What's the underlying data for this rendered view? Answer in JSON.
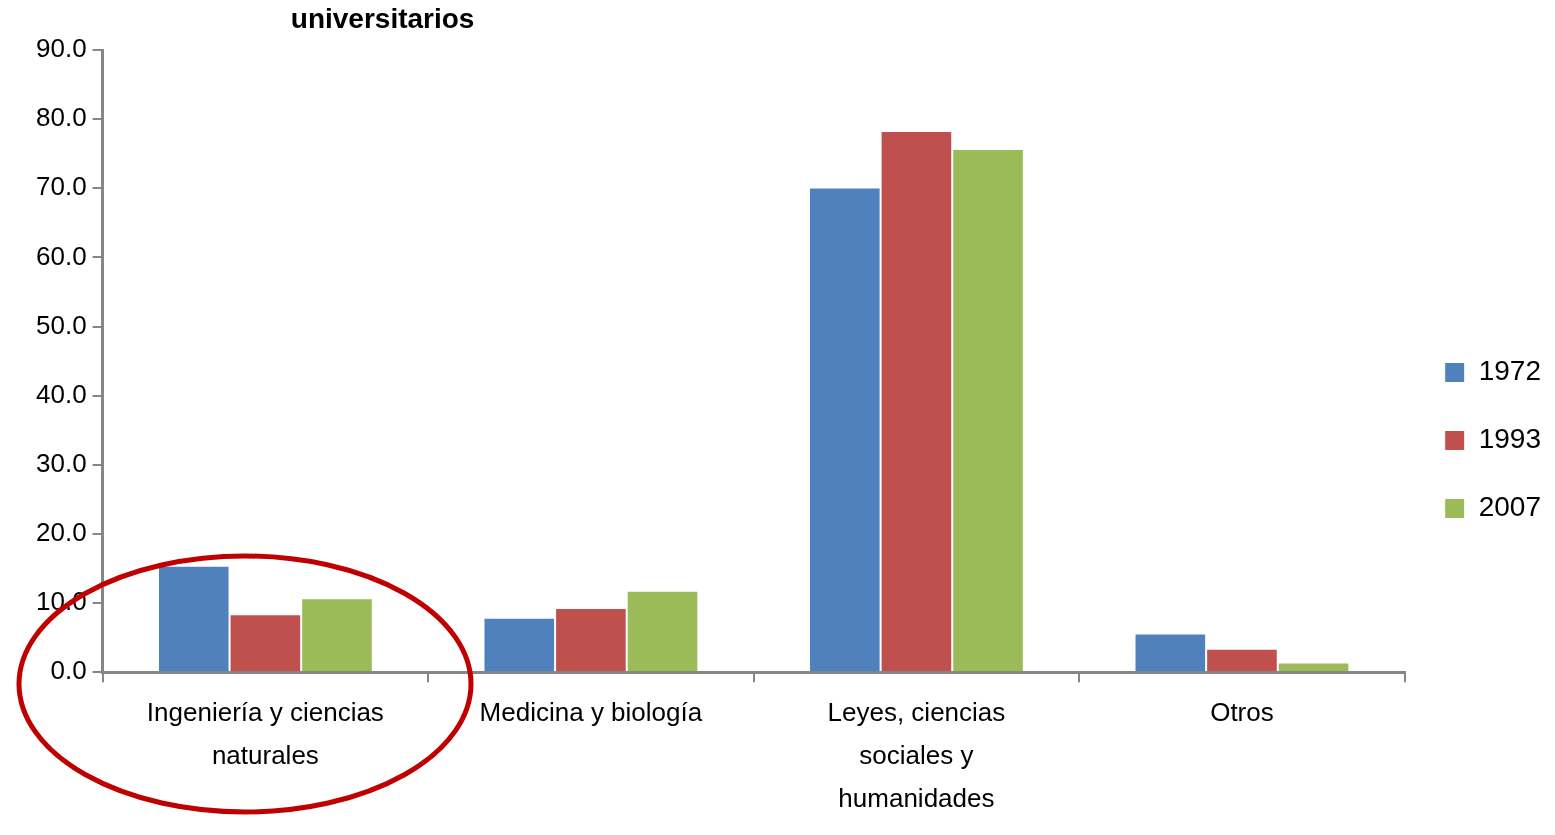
{
  "chart_data": {
    "type": "bar",
    "title": "universitarios",
    "categories": [
      "Ingeniería y ciencias naturales",
      "Medicina y biología",
      "Leyes, ciencias sociales y humanidades",
      "Otros"
    ],
    "series": [
      {
        "name": "1972",
        "color": "#4f81bd",
        "values": [
          15.4,
          7.9,
          70.1,
          5.6
        ]
      },
      {
        "name": "1993",
        "color": "#c0504d",
        "values": [
          8.4,
          9.3,
          78.3,
          3.4
        ]
      },
      {
        "name": "2007",
        "color": "#9bbb59",
        "values": [
          10.7,
          11.8,
          75.7,
          1.4
        ]
      }
    ],
    "ylim": [
      0,
      90
    ],
    "yticks": [
      {
        "value": 0,
        "label": "0.0"
      },
      {
        "value": 10,
        "label": "10.0"
      },
      {
        "value": 20,
        "label": "20.0"
      },
      {
        "value": 30,
        "label": "30.0"
      },
      {
        "value": 40,
        "label": "40.0"
      },
      {
        "value": 50,
        "label": "50.0"
      },
      {
        "value": 60,
        "label": "60.0"
      },
      {
        "value": 70,
        "label": "70.0"
      },
      {
        "value": 80,
        "label": "80.0"
      },
      {
        "value": 90,
        "label": "90.0"
      }
    ],
    "grid": false,
    "legend": "right"
  }
}
